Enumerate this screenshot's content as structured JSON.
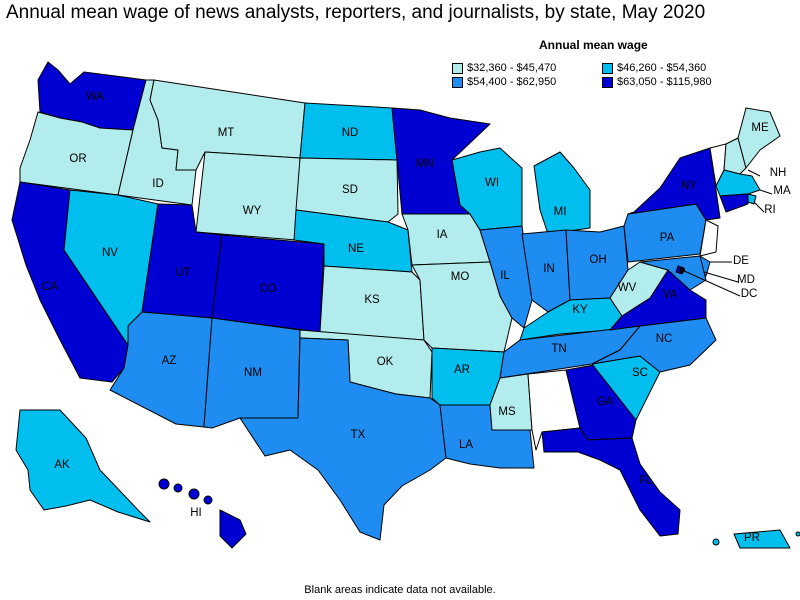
{
  "title": "Annual mean wage of news analysts, reporters, and journalists, by state, May 2020",
  "legend": {
    "title": "Annual mean wage",
    "items": [
      {
        "label": "$32,360 - $45,470",
        "color": "#b3ecec"
      },
      {
        "label": "$46,260 - $54,360",
        "color": "#00bfef"
      },
      {
        "label": "$54,400 - $62,950",
        "color": "#1e8cf0"
      },
      {
        "label": "$63,050 - $115,980",
        "color": "#0000d2"
      }
    ]
  },
  "note": "Blank areas indicate data not available.",
  "states": {
    "WA": 3,
    "OR": 0,
    "ID": 0,
    "MT": 0,
    "WY": 0,
    "CA": 3,
    "NV": 1,
    "UT": 3,
    "CO": 3,
    "AZ": 2,
    "NM": 2,
    "ND": 1,
    "SD": 0,
    "NE": 1,
    "KS": 0,
    "OK": 0,
    "TX": 2,
    "MN": 3,
    "IA": 0,
    "MO": 0,
    "AR": 1,
    "LA": 2,
    "WI": 1,
    "IL": 2,
    "MI": 1,
    "IN": 2,
    "OH": 2,
    "KY": 1,
    "TN": 2,
    "MS": 0,
    "AL": null,
    "GA": 3,
    "FL": 3,
    "SC": 1,
    "NC": 2,
    "VA": 3,
    "WV": 0,
    "PA": 2,
    "NY": 3,
    "VT": null,
    "NH": 0,
    "ME": 0,
    "MA": 1,
    "RI": 1,
    "CT": 3,
    "NJ": null,
    "DE": 2,
    "MD": 2,
    "DC": 3,
    "AK": 1,
    "HI": 3,
    "PR": 1
  },
  "labels": [
    "WA",
    "OR",
    "ID",
    "MT",
    "WY",
    "CA",
    "NV",
    "UT",
    "CO",
    "AZ",
    "NM",
    "ND",
    "SD",
    "NE",
    "KS",
    "OK",
    "TX",
    "MN",
    "IA",
    "MO",
    "AR",
    "LA",
    "WI",
    "IL",
    "MI",
    "IN",
    "OH",
    "KY",
    "TN",
    "MS",
    "GA",
    "FL",
    "SC",
    "NC",
    "VA",
    "WV",
    "PA",
    "NY",
    "NH",
    "ME",
    "MA",
    "RI",
    "DE",
    "MD",
    "DC",
    "AK",
    "HI",
    "PR"
  ]
}
